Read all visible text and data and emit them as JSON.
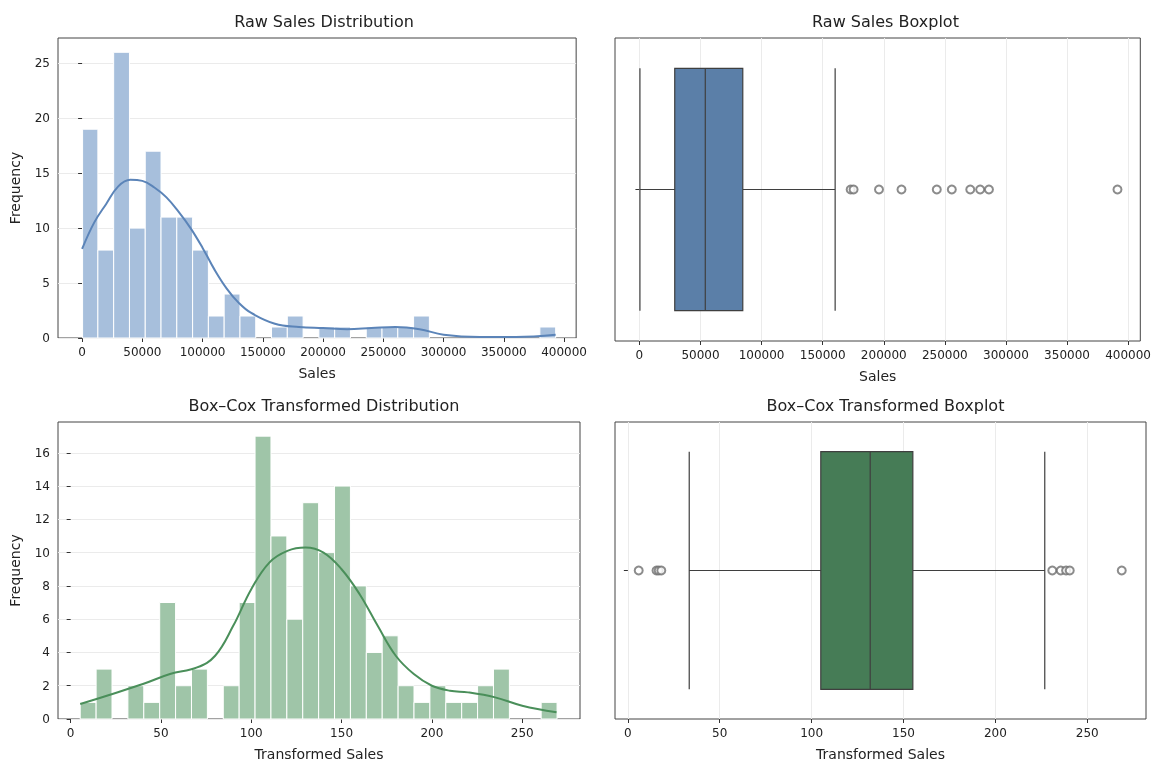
{
  "chart_data": [
    {
      "type": "histogram",
      "title": "Raw Sales Distribution",
      "xlabel": "Sales",
      "ylabel": "Frequency",
      "color": "#a7bfdc",
      "grid": "y",
      "bins": [
        400,
        13100,
        26200,
        39300,
        52400,
        65500,
        78600,
        91700,
        104800,
        117900,
        131000,
        144100,
        157200,
        170300,
        183400,
        196500,
        209600,
        222700,
        235800,
        248900,
        262000,
        275100,
        288200,
        301300,
        314400,
        327500,
        340600,
        353700,
        366800,
        379900,
        393000
      ],
      "values": [
        19,
        8,
        26,
        10,
        17,
        11,
        11,
        8,
        2,
        4,
        2,
        0,
        1,
        2,
        0,
        1,
        1,
        0,
        1,
        1,
        1,
        2,
        0,
        0,
        0,
        0,
        0,
        0,
        0,
        1
      ],
      "series": [
        {
          "type": "line",
          "color": "#5b84b8",
          "marker": "none",
          "x": [
            0,
            10000,
            20000,
            30000,
            40000,
            50000,
            60000,
            70000,
            80000,
            90000,
            100000,
            110000,
            120000,
            130000,
            140000,
            160000,
            180000,
            200000,
            220000,
            240000,
            260000,
            280000,
            300000,
            330000,
            360000,
            393000
          ],
          "values": [
            8.1,
            10.5,
            12.2,
            13.8,
            14.4,
            14.3,
            13.7,
            12.8,
            11.5,
            10,
            8.2,
            6.2,
            4.5,
            3.2,
            2.3,
            1.3,
            1,
            0.9,
            0.8,
            0.9,
            1,
            0.8,
            0.3,
            0.1,
            0.1,
            0.3
          ]
        }
      ],
      "xlim": [
        -20000,
        410000
      ],
      "xticks": [
        0,
        50000,
        100000,
        150000,
        200000,
        250000,
        300000,
        350000,
        400000
      ],
      "ylim": [
        0,
        27.3
      ],
      "yticks": [
        0,
        5,
        10,
        15,
        20,
        25
      ]
    },
    {
      "type": "box",
      "title": "Raw Sales Boxplot",
      "xlabel": "Sales",
      "orientation": "horizontal",
      "color": "#5b7fa8",
      "grid": "x",
      "categories": [
        null
      ],
      "boxes": [
        {
          "low": 400,
          "q1": 28900,
          "median": 53900,
          "q3": 84600,
          "high": 160200,
          "outliers": [
            172900,
            175300,
            196100,
            214500,
            243400,
            255700,
            270800,
            278900,
            286100,
            391300
          ]
        }
      ],
      "xlim": [
        -20000,
        410000
      ],
      "xticks": [
        0,
        50000,
        100000,
        150000,
        200000,
        250000,
        300000,
        350000,
        400000
      ]
    },
    {
      "type": "histogram",
      "title": "Box–Cox Transformed Distribution",
      "xlabel": "Transformed Sales",
      "ylabel": "Frequency",
      "color": "#9fc5a8",
      "grid": "y",
      "bins": [
        5.3,
        14.1,
        22.9,
        31.7,
        40.5,
        49.3,
        58.1,
        66.9,
        75.7,
        84.5,
        93.3,
        102.1,
        110.9,
        119.7,
        128.5,
        137.3,
        146.1,
        154.9,
        163.7,
        172.5,
        181.3,
        190.1,
        198.9,
        207.7,
        216.5,
        225.3,
        234.1,
        242.9,
        251.7,
        260.5,
        269.3
      ],
      "values": [
        1,
        3,
        0,
        2,
        1,
        7,
        2,
        3,
        0,
        2,
        7,
        17,
        11,
        6,
        13,
        10,
        14,
        8,
        4,
        5,
        2,
        1,
        2,
        1,
        1,
        2,
        3,
        0,
        0,
        1
      ],
      "series": [
        {
          "type": "line",
          "color": "#4a8f5a",
          "marker": "none",
          "x": [
            5.3,
            20,
            40,
            55,
            70,
            80,
            90,
            100,
            110,
            120,
            130,
            140,
            150,
            160,
            170,
            180,
            190,
            200,
            210,
            220,
            235,
            250,
            269
          ],
          "values": [
            0.9,
            1.4,
            2.1,
            2.7,
            3.1,
            3.8,
            5.6,
            7.8,
            9.4,
            10.1,
            10.3,
            10,
            9,
            7.5,
            5.6,
            3.8,
            2.7,
            2,
            1.7,
            1.6,
            1.3,
            0.8,
            0.4
          ]
        }
      ],
      "xlim": [
        -7,
        282
      ],
      "xticks": [
        0,
        50,
        100,
        150,
        200,
        250
      ],
      "ylim": [
        0,
        17.85
      ],
      "yticks": [
        0,
        2,
        4,
        6,
        8,
        10,
        12,
        14,
        16
      ]
    },
    {
      "type": "box",
      "title": "Box–Cox Transformed Boxplot",
      "xlabel": "Transformed Sales",
      "orientation": "horizontal",
      "color": "#467c56",
      "grid": "x",
      "categories": [
        null
      ],
      "boxes": [
        {
          "low": 33.4,
          "q1": 105,
          "median": 131.9,
          "q3": 155.1,
          "high": 226.9,
          "outliers": [
            5.9,
            15.6,
            16.8,
            18.2,
            231,
            235.6,
            238.5,
            240.5,
            268.8
          ]
        }
      ],
      "xlim": [
        -7,
        282
      ],
      "xticks": [
        0,
        50,
        100,
        150,
        200,
        250
      ]
    }
  ]
}
